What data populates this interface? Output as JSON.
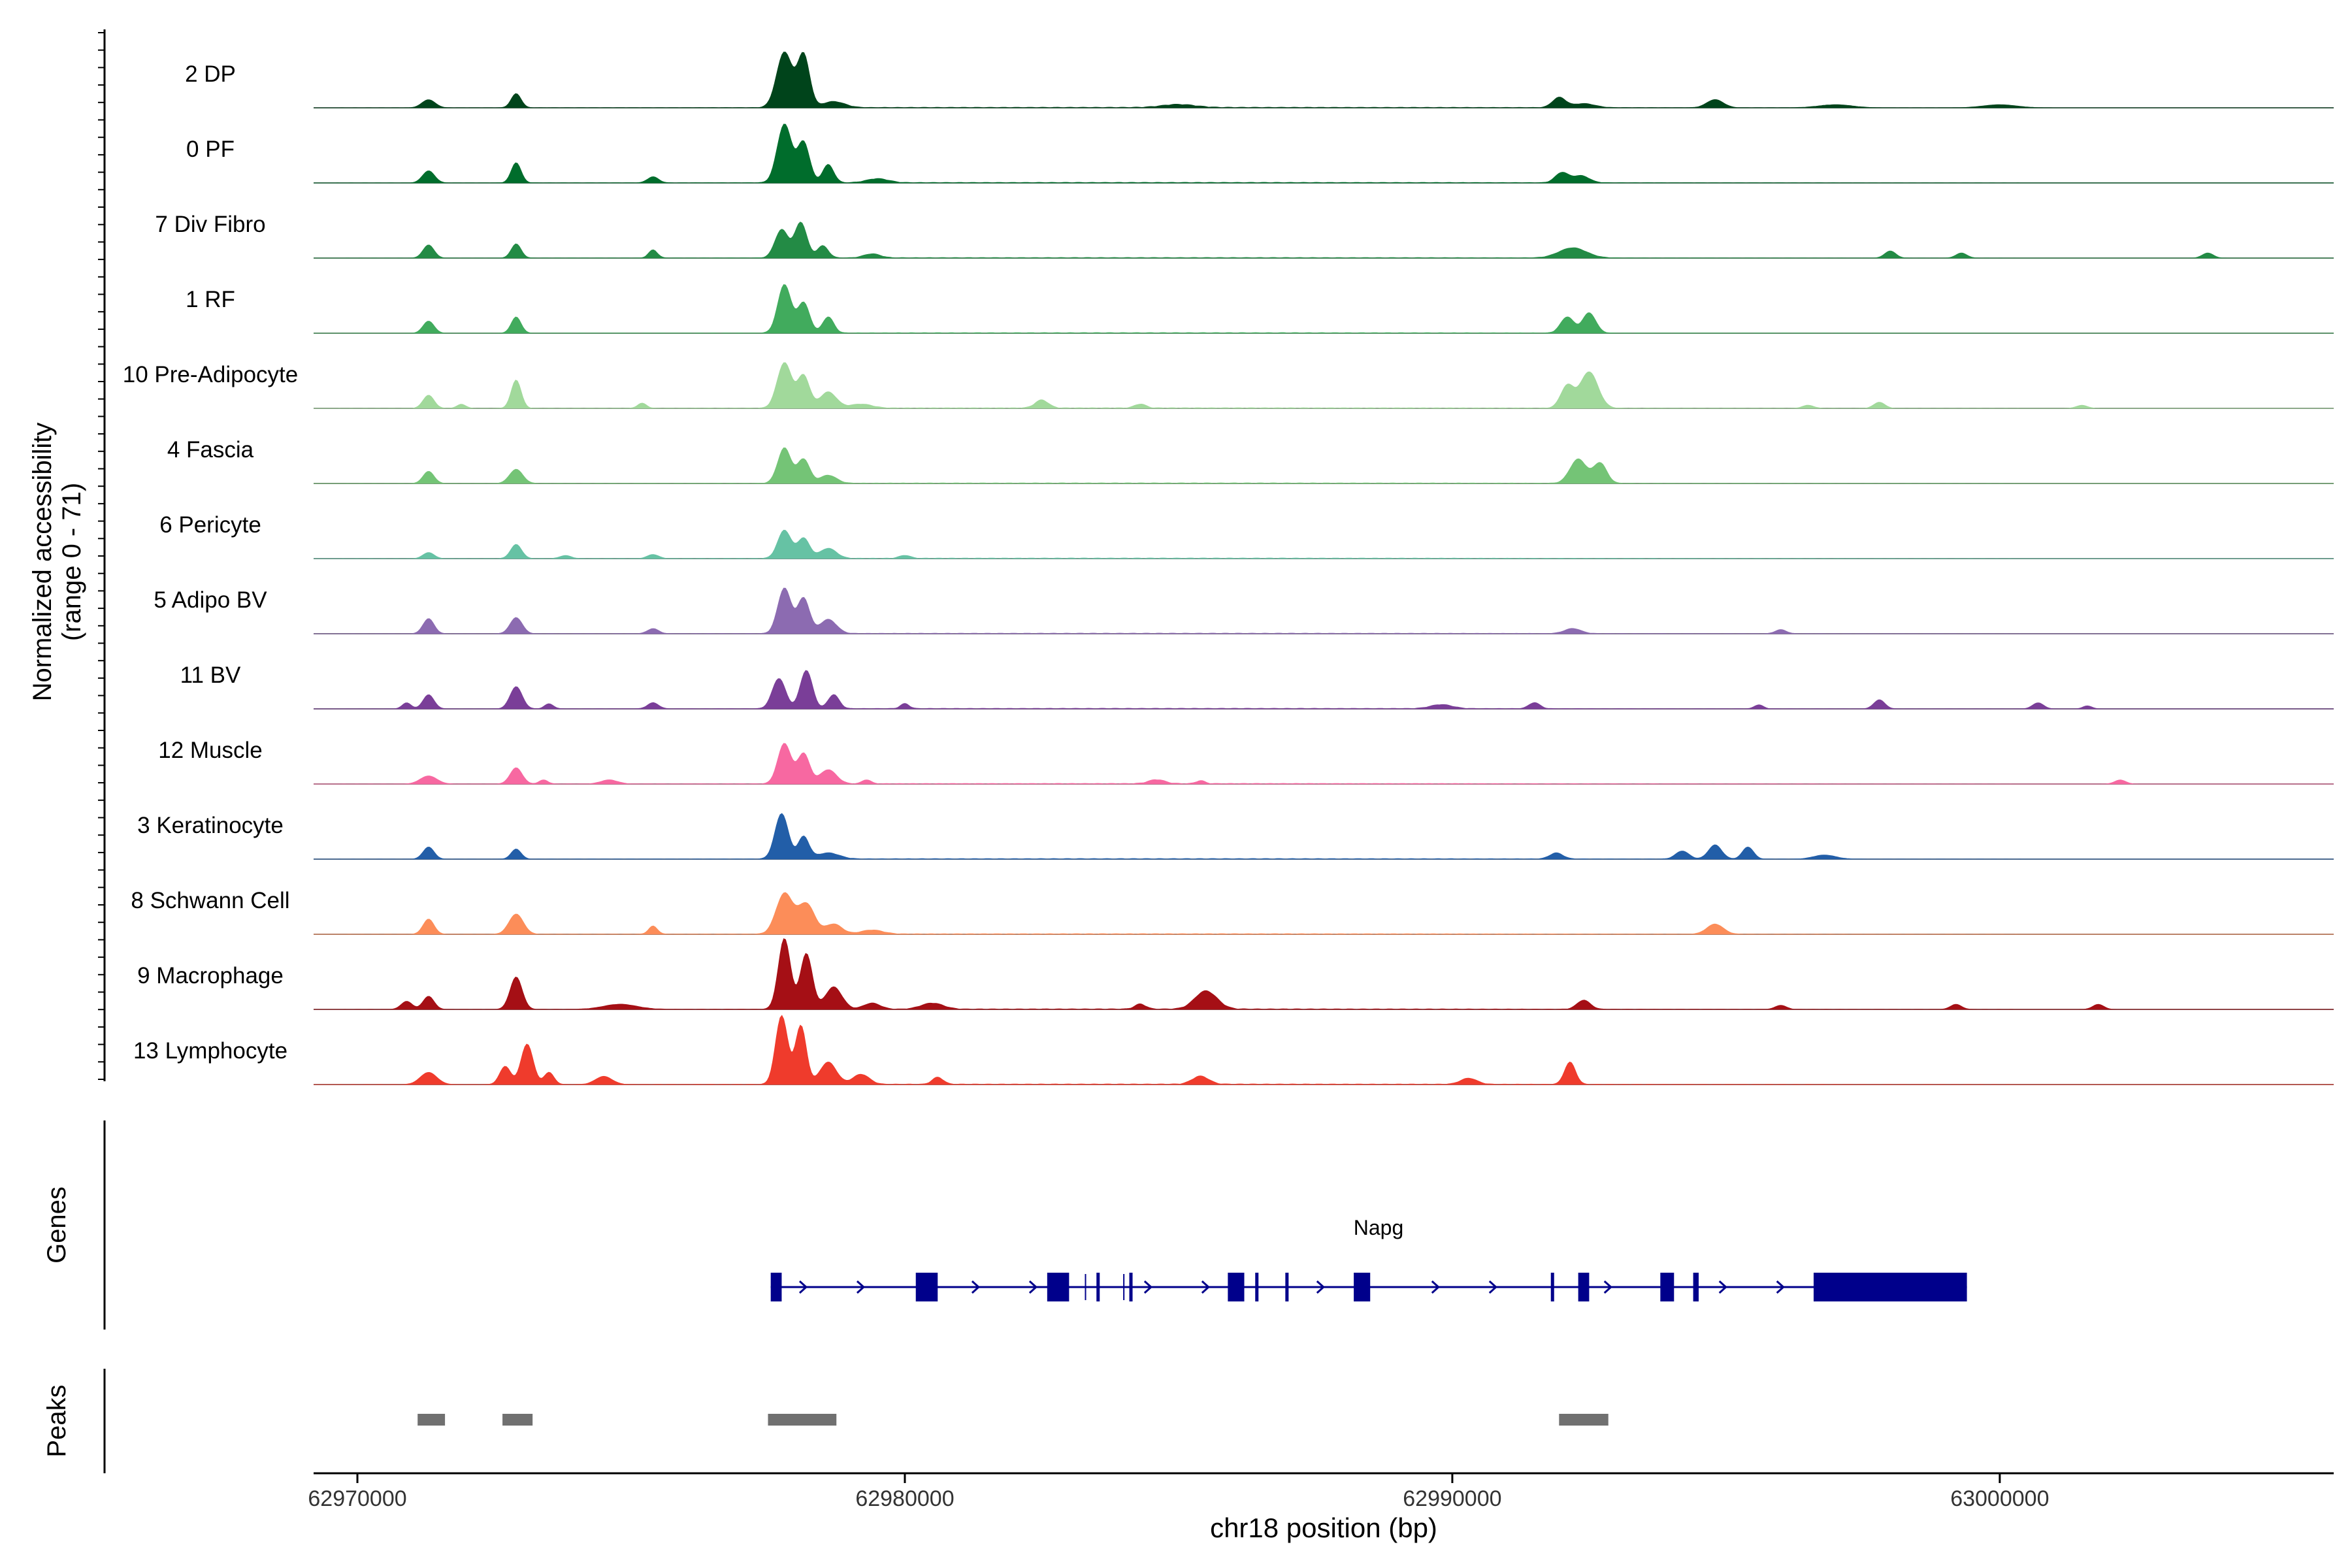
{
  "chart_data": {
    "type": "area",
    "title": "",
    "chromosome": "chr18",
    "xlabel": "chr18 position (bp)",
    "xlim": [
      62969200,
      63006100
    ],
    "x_ticks": [
      62970000,
      62980000,
      62990000,
      63000000
    ],
    "ylabel": "Normalized accessibility",
    "ylabel_range": "(range 0 - 71)",
    "ylim": [
      0,
      71
    ],
    "grid": false,
    "legend": "none",
    "track_labels": {
      "genes": "Genes",
      "peaks": "Peaks"
    },
    "series": [
      {
        "name": "2 DP",
        "color": "#00441b",
        "peaks": [
          [
            62971300,
            8,
            120
          ],
          [
            62972900,
            14,
            90
          ],
          [
            62977800,
            55,
            140
          ],
          [
            62978150,
            52,
            110
          ],
          [
            62978700,
            6,
            200
          ],
          [
            62985000,
            3,
            300
          ],
          [
            62991950,
            10,
            120
          ],
          [
            62992400,
            4,
            200
          ],
          [
            62994800,
            8,
            150
          ],
          [
            62997000,
            3,
            300
          ],
          [
            63000000,
            3,
            300
          ]
        ]
      },
      {
        "name": "0 PF",
        "color": "#006d2c",
        "peaks": [
          [
            62971300,
            12,
            110
          ],
          [
            62972900,
            20,
            90
          ],
          [
            62977800,
            58,
            130
          ],
          [
            62978150,
            40,
            110
          ],
          [
            62978600,
            18,
            100
          ],
          [
            62975400,
            6,
            100
          ],
          [
            62979500,
            4,
            200
          ],
          [
            62992000,
            10,
            120
          ],
          [
            62992350,
            7,
            150
          ]
        ]
      },
      {
        "name": "7 Div Fibro",
        "color": "#238b45",
        "peaks": [
          [
            62971300,
            13,
            100
          ],
          [
            62972900,
            14,
            90
          ],
          [
            62975400,
            8,
            80
          ],
          [
            62977750,
            28,
            120
          ],
          [
            62978100,
            35,
            110
          ],
          [
            62978500,
            12,
            100
          ],
          [
            62979400,
            4,
            150
          ],
          [
            62992200,
            10,
            250
          ],
          [
            62998000,
            7,
            100
          ],
          [
            62999300,
            5,
            100
          ],
          [
            63003800,
            5,
            100
          ]
        ]
      },
      {
        "name": "1 RF",
        "color": "#41ab5d",
        "peaks": [
          [
            62971300,
            12,
            100
          ],
          [
            62972900,
            16,
            90
          ],
          [
            62977800,
            48,
            120
          ],
          [
            62978150,
            30,
            110
          ],
          [
            62978600,
            16,
            100
          ],
          [
            62992100,
            16,
            120
          ],
          [
            62992500,
            20,
            120
          ]
        ]
      },
      {
        "name": "10 Pre-Adipocyte",
        "color": "#a1d99b",
        "peaks": [
          [
            62971300,
            13,
            100
          ],
          [
            62972900,
            28,
            90
          ],
          [
            62971900,
            4,
            80
          ],
          [
            62975200,
            5,
            80
          ],
          [
            62977800,
            45,
            130
          ],
          [
            62978150,
            32,
            110
          ],
          [
            62978600,
            16,
            150
          ],
          [
            62979200,
            4,
            200
          ],
          [
            62982500,
            8,
            120
          ],
          [
            62984300,
            4,
            100
          ],
          [
            62992100,
            22,
            120
          ],
          [
            62992500,
            36,
            160
          ],
          [
            62997800,
            6,
            100
          ],
          [
            62996500,
            3,
            100
          ],
          [
            63001500,
            3,
            100
          ]
        ]
      },
      {
        "name": "4 Fascia",
        "color": "#74c476",
        "peaks": [
          [
            62971300,
            12,
            100
          ],
          [
            62972900,
            14,
            120
          ],
          [
            62977800,
            35,
            120
          ],
          [
            62978150,
            24,
            110
          ],
          [
            62978600,
            8,
            150
          ],
          [
            62992300,
            24,
            150
          ],
          [
            62992700,
            20,
            120
          ]
        ]
      },
      {
        "name": "6 Pericyte",
        "color": "#66c2a4",
        "peaks": [
          [
            62971300,
            6,
            100
          ],
          [
            62972900,
            14,
            100
          ],
          [
            62973800,
            3,
            100
          ],
          [
            62975400,
            4,
            100
          ],
          [
            62977800,
            28,
            120
          ],
          [
            62978150,
            20,
            110
          ],
          [
            62978600,
            10,
            150
          ],
          [
            62980000,
            3,
            100
          ]
        ]
      },
      {
        "name": "5 Adipo BV",
        "color": "#8c6bb1",
        "peaks": [
          [
            62971300,
            15,
            100
          ],
          [
            62972900,
            16,
            110
          ],
          [
            62975400,
            5,
            100
          ],
          [
            62977800,
            45,
            120
          ],
          [
            62978150,
            35,
            110
          ],
          [
            62978600,
            14,
            150
          ],
          [
            62992200,
            5,
            150
          ],
          [
            62996000,
            4,
            100
          ]
        ]
      },
      {
        "name": "11 BV",
        "color": "#7a3e98",
        "peaks": [
          [
            62970900,
            6,
            80
          ],
          [
            62971300,
            14,
            100
          ],
          [
            62972900,
            22,
            110
          ],
          [
            62973500,
            5,
            80
          ],
          [
            62975400,
            6,
            100
          ],
          [
            62977700,
            30,
            120
          ],
          [
            62978200,
            38,
            110
          ],
          [
            62978700,
            14,
            100
          ],
          [
            62980000,
            5,
            80
          ],
          [
            62989800,
            4,
            200
          ],
          [
            62991500,
            6,
            100
          ],
          [
            62997800,
            9,
            100
          ],
          [
            62995600,
            4,
            80
          ],
          [
            63000700,
            6,
            100
          ],
          [
            63001600,
            3,
            80
          ]
        ]
      },
      {
        "name": "12 Muscle",
        "color": "#f768a1",
        "peaks": [
          [
            62971300,
            8,
            150
          ],
          [
            62972900,
            16,
            110
          ],
          [
            62973400,
            4,
            80
          ],
          [
            62974600,
            4,
            150
          ],
          [
            62977800,
            40,
            120
          ],
          [
            62978150,
            30,
            110
          ],
          [
            62978600,
            14,
            150
          ],
          [
            62979300,
            4,
            80
          ],
          [
            62984600,
            4,
            150
          ],
          [
            62985400,
            3,
            80
          ],
          [
            63002200,
            4,
            100
          ]
        ]
      },
      {
        "name": "3 Keratinocyte",
        "color": "#225ea8",
        "peaks": [
          [
            62971300,
            12,
            100
          ],
          [
            62972900,
            10,
            90
          ],
          [
            62977750,
            45,
            120
          ],
          [
            62978150,
            22,
            100
          ],
          [
            62978600,
            6,
            200
          ],
          [
            62991900,
            6,
            120
          ],
          [
            62994200,
            8,
            120
          ],
          [
            62994800,
            14,
            120
          ],
          [
            62995400,
            12,
            100
          ],
          [
            62996800,
            4,
            200
          ]
        ]
      },
      {
        "name": "8 Schwann Cell",
        "color": "#fc8d59",
        "peaks": [
          [
            62971300,
            15,
            100
          ],
          [
            62972900,
            20,
            130
          ],
          [
            62975400,
            8,
            80
          ],
          [
            62977800,
            40,
            150
          ],
          [
            62978200,
            30,
            150
          ],
          [
            62978700,
            10,
            150
          ],
          [
            62979400,
            4,
            200
          ],
          [
            62994800,
            10,
            150
          ]
        ]
      },
      {
        "name": "9 Macrophage",
        "color": "#a50f15",
        "peaks": [
          [
            62970900,
            8,
            100
          ],
          [
            62971300,
            13,
            100
          ],
          [
            62972900,
            32,
            110
          ],
          [
            62974800,
            5,
            300
          ],
          [
            62977800,
            70,
            110
          ],
          [
            62978200,
            55,
            110
          ],
          [
            62978700,
            22,
            150
          ],
          [
            62979400,
            6,
            150
          ],
          [
            62980500,
            6,
            200
          ],
          [
            62985500,
            18,
            200
          ],
          [
            62984300,
            5,
            100
          ],
          [
            62992400,
            9,
            120
          ],
          [
            62996000,
            4,
            100
          ],
          [
            62999200,
            5,
            100
          ],
          [
            63001800,
            5,
            100
          ]
        ]
      },
      {
        "name": "13 Lymphocyte",
        "color": "#ef3b2c",
        "peaks": [
          [
            62971300,
            12,
            150
          ],
          [
            62972700,
            18,
            100
          ],
          [
            62973100,
            40,
            110
          ],
          [
            62973500,
            12,
            90
          ],
          [
            62974500,
            8,
            150
          ],
          [
            62977750,
            68,
            110
          ],
          [
            62978100,
            58,
            100
          ],
          [
            62978600,
            22,
            150
          ],
          [
            62979200,
            10,
            150
          ],
          [
            62980600,
            7,
            100
          ],
          [
            62985400,
            8,
            150
          ],
          [
            62990300,
            6,
            150
          ],
          [
            62992150,
            22,
            100
          ]
        ]
      }
    ],
    "gene": {
      "name": "Napg",
      "strand": "+",
      "start": 62977550,
      "end": 62999400,
      "exons": [
        [
          62977550,
          62977750
        ],
        [
          62980200,
          62980600
        ],
        [
          62982600,
          62983000
        ],
        [
          62983500,
          62983550
        ],
        [
          62984100,
          62984150
        ],
        [
          62985900,
          62986200
        ],
        [
          62986400,
          62986450
        ],
        [
          62986950,
          62987000
        ],
        [
          62988200,
          62988500
        ],
        [
          62991800,
          62991850
        ],
        [
          62992300,
          62992500
        ],
        [
          62993800,
          62994050
        ],
        [
          62994400,
          62994500
        ],
        [
          62996600,
          62999400
        ]
      ],
      "thin_ticks": [
        62983300,
        62984000
      ]
    },
    "peak_regions": [
      [
        62971100,
        62971600
      ],
      [
        62972650,
        62973200
      ],
      [
        62977500,
        62978750
      ],
      [
        62991950,
        62992850
      ]
    ]
  }
}
